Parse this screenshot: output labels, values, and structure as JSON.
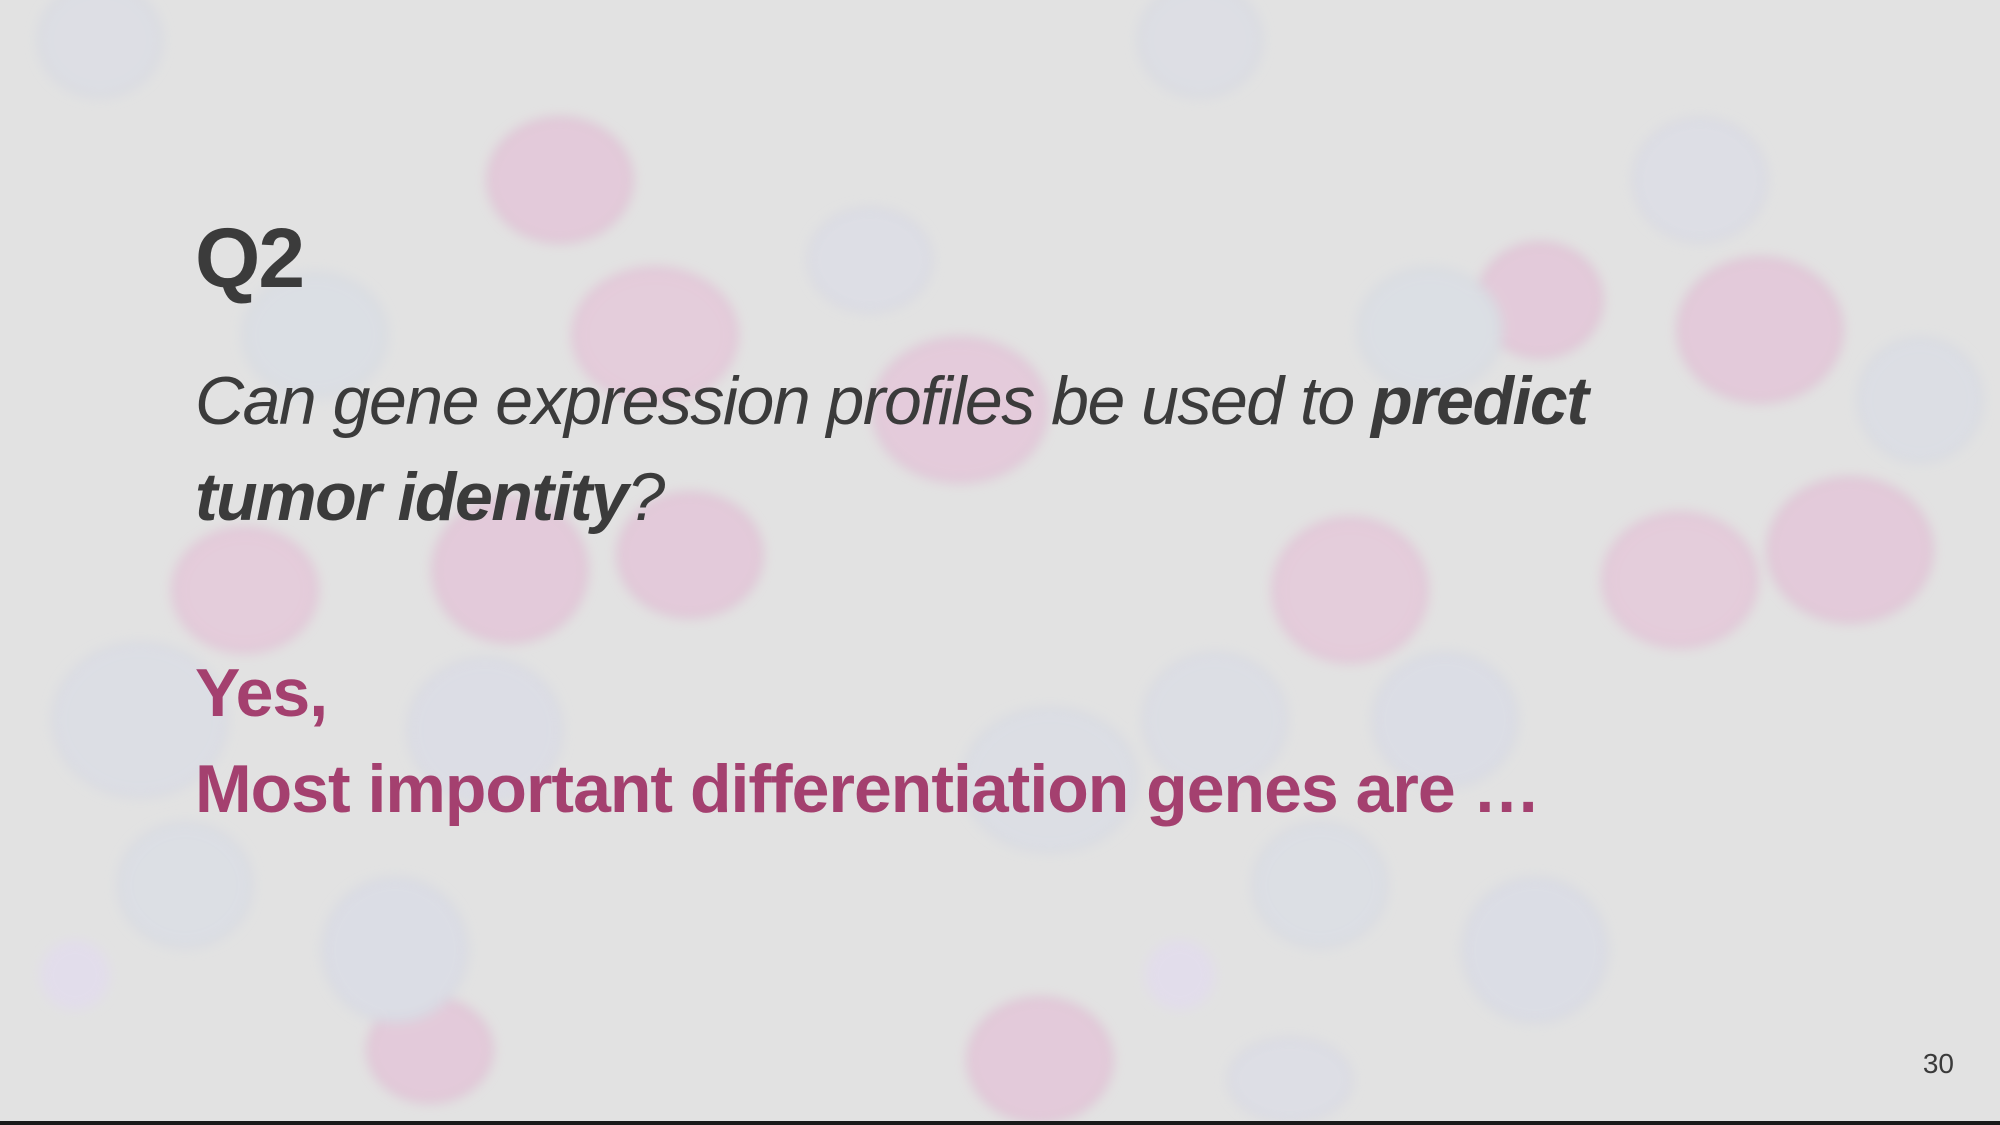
{
  "slide": {
    "title": "Q2",
    "question": {
      "part1": "Can gene expression profiles be used to ",
      "emphasis1": "predict",
      "space": " ",
      "emphasis2": "tumor identity",
      "part2": "?"
    },
    "answer": {
      "line1": "Yes,",
      "line2": "Most important differentiation genes are …"
    },
    "page_number": "30"
  },
  "colors": {
    "background": "#e2e2e2",
    "text_dark": "#3b3b3b",
    "accent": "#a4406f"
  }
}
